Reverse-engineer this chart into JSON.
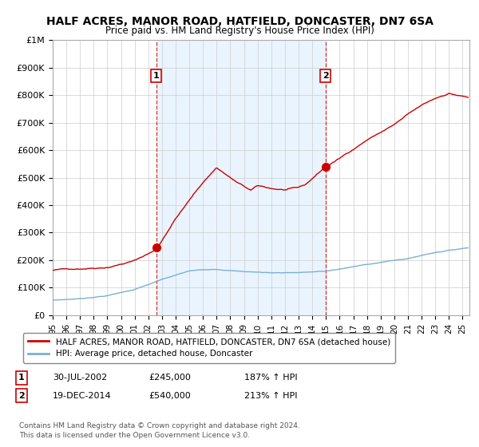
{
  "title": "HALF ACRES, MANOR ROAD, HATFIELD, DONCASTER, DN7 6SA",
  "subtitle": "Price paid vs. HM Land Registry's House Price Index (HPI)",
  "legend_line1": "HALF ACRES, MANOR ROAD, HATFIELD, DONCASTER, DN7 6SA (detached house)",
  "legend_line2": "HPI: Average price, detached house, Doncaster",
  "sale1_date": "30-JUL-2002",
  "sale1_price": 245000,
  "sale1_hpi": "187%",
  "sale2_date": "19-DEC-2014",
  "sale2_price": 540000,
  "sale2_hpi": "213%",
  "footer": "Contains HM Land Registry data © Crown copyright and database right 2024.\nThis data is licensed under the Open Government Licence v3.0.",
  "red_color": "#cc0000",
  "blue_color": "#7bafd4",
  "shade_color": "#ddeeff",
  "ylim": [
    0,
    1000000
  ],
  "xmin": 1995.0,
  "xmax": 2025.5
}
